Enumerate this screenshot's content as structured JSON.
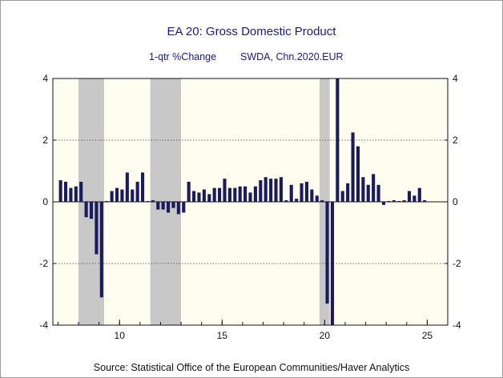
{
  "chart_data": {
    "type": "bar",
    "title": "EA 20: Gross Domestic Product",
    "subtitle_left": "1-qtr %Change",
    "subtitle_right": "SWDA, Chn.2020.EUR",
    "source": "Source:  Statistical Office of the European Communities/Haver Analytics",
    "xlim": [
      2006.75,
      2026
    ],
    "ylim": [
      -4,
      4
    ],
    "x_ticks": [
      10,
      15,
      20,
      25
    ],
    "x_tick_labels": [
      "10",
      "15",
      "20",
      "25"
    ],
    "y_ticks": [
      4,
      2,
      0,
      -2,
      -4
    ],
    "y_tick_labels": [
      "4",
      "2",
      "0",
      "-2",
      "-4"
    ],
    "grid_lines_dotted": [
      2,
      -2
    ],
    "recessions": [
      {
        "start": 2008.0,
        "end": 2009.25
      },
      {
        "start": 2011.5,
        "end": 2013.0
      },
      {
        "start": 2019.75,
        "end": 2020.25
      }
    ],
    "series": [
      {
        "start": 2007.0,
        "frequency": "quarterly",
        "values": [
          0.7,
          0.65,
          0.45,
          0.5,
          0.65,
          -0.5,
          -0.55,
          -1.7,
          -3.1,
          0.0,
          0.35,
          0.45,
          0.4,
          0.95,
          0.4,
          0.65,
          0.95,
          0.0,
          0.05,
          -0.25,
          -0.25,
          -0.35,
          -0.2,
          -0.4,
          -0.35,
          0.65,
          0.35,
          0.3,
          0.4,
          0.25,
          0.45,
          0.45,
          0.75,
          0.45,
          0.45,
          0.5,
          0.5,
          0.3,
          0.5,
          0.7,
          0.8,
          0.75,
          0.75,
          0.8,
          0.05,
          0.55,
          0.1,
          0.6,
          0.65,
          0.4,
          0.2,
          0.05,
          -3.3,
          -4.0,
          4.0,
          0.35,
          0.6,
          2.25,
          1.8,
          0.8,
          0.55,
          0.9,
          0.55,
          -0.1,
          0.0,
          0.05,
          0.0,
          0.05,
          0.35,
          0.2,
          0.45,
          0.05
        ]
      }
    ],
    "colors": {
      "bar": "#1a1a5e",
      "recession": "#c8c8c8",
      "plot_background": "#fffdf0"
    },
    "grid": true
  }
}
